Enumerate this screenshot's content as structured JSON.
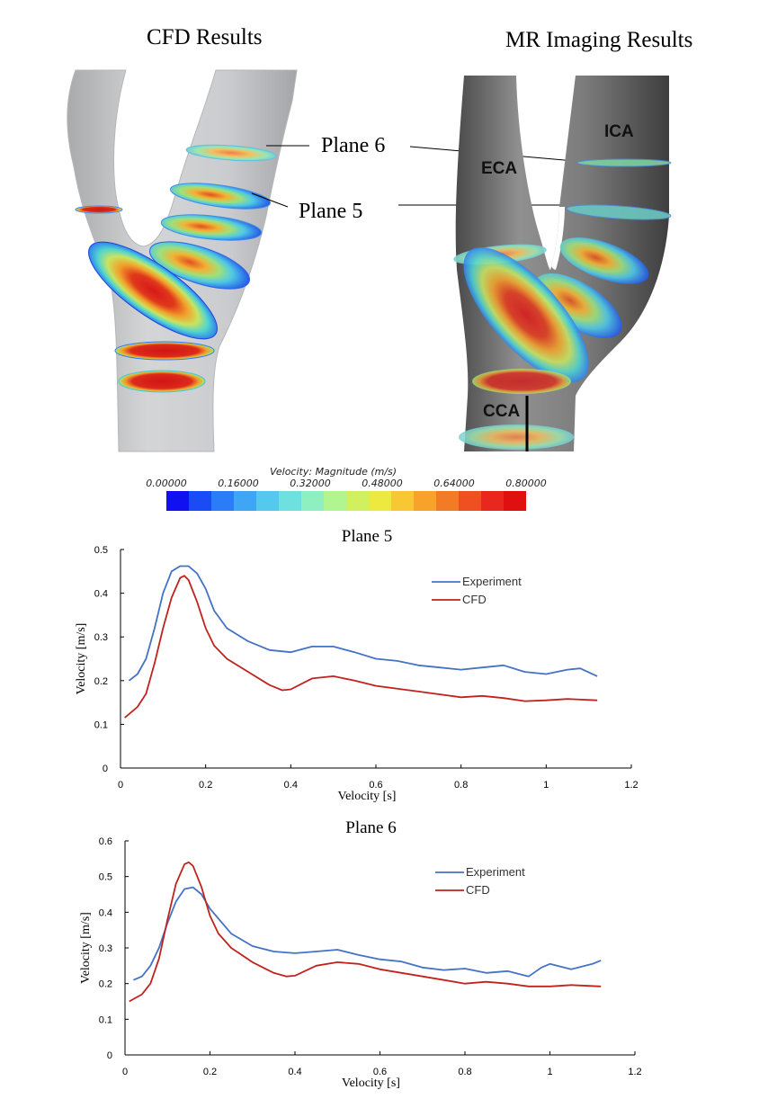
{
  "figure": {
    "cfd_heading": "CFD Results",
    "mr_heading": "MR Imaging Results",
    "plane6_label": "Plane 6",
    "plane5_label": "Plane 5",
    "mr_labels": {
      "ica": "ICA",
      "eca": "ECA",
      "cca": "CCA"
    }
  },
  "colorbar": {
    "title": "Velocity: Magnitude (m/s)",
    "ticks": [
      "0.00000",
      "0.16000",
      "0.32000",
      "0.48000",
      "0.64000",
      "0.80000"
    ],
    "colors": [
      "#1010f0",
      "#1a4cf5",
      "#2a7df7",
      "#3fa6f5",
      "#55c8ee",
      "#6fe0e0",
      "#8ef0c0",
      "#b0f590",
      "#d0f060",
      "#ecea40",
      "#f7c833",
      "#f8a22b",
      "#f47b25",
      "#ee5021",
      "#e8281e",
      "#e01010"
    ]
  },
  "chart_data": [
    {
      "type": "line",
      "title": "Plane 5",
      "xlabel": "Velocity [s]",
      "ylabel": "Velocity [m/s]",
      "xlim": [
        0,
        1.2
      ],
      "ylim": [
        0,
        0.5
      ],
      "xticks": [
        "0",
        "0.2",
        "0.4",
        "0.6",
        "0.8",
        "1",
        "1.2"
      ],
      "yticks": [
        "0",
        "0.1",
        "0.2",
        "0.3",
        "0.4",
        "0.5"
      ],
      "legend": "right",
      "series": [
        {
          "name": "Experiment",
          "color": "#4472c4",
          "x": [
            0.02,
            0.04,
            0.06,
            0.08,
            0.1,
            0.12,
            0.14,
            0.16,
            0.18,
            0.2,
            0.22,
            0.25,
            0.3,
            0.35,
            0.4,
            0.45,
            0.5,
            0.55,
            0.6,
            0.65,
            0.7,
            0.75,
            0.8,
            0.85,
            0.9,
            0.95,
            1.0,
            1.05,
            1.08,
            1.12
          ],
          "y": [
            0.2,
            0.215,
            0.25,
            0.32,
            0.4,
            0.45,
            0.462,
            0.462,
            0.445,
            0.41,
            0.36,
            0.32,
            0.29,
            0.27,
            0.265,
            0.278,
            0.278,
            0.265,
            0.25,
            0.245,
            0.235,
            0.23,
            0.225,
            0.23,
            0.235,
            0.22,
            0.215,
            0.225,
            0.228,
            0.21
          ]
        },
        {
          "name": "CFD",
          "color": "#c0231e",
          "x": [
            0.01,
            0.04,
            0.06,
            0.08,
            0.1,
            0.12,
            0.14,
            0.15,
            0.16,
            0.18,
            0.2,
            0.22,
            0.25,
            0.3,
            0.35,
            0.38,
            0.4,
            0.45,
            0.5,
            0.55,
            0.6,
            0.7,
            0.8,
            0.85,
            0.9,
            0.95,
            1.0,
            1.05,
            1.12
          ],
          "y": [
            0.115,
            0.14,
            0.17,
            0.24,
            0.32,
            0.39,
            0.435,
            0.44,
            0.43,
            0.38,
            0.32,
            0.28,
            0.25,
            0.22,
            0.19,
            0.178,
            0.18,
            0.205,
            0.21,
            0.2,
            0.188,
            0.175,
            0.162,
            0.165,
            0.16,
            0.153,
            0.155,
            0.158,
            0.155
          ]
        }
      ]
    },
    {
      "type": "line",
      "title": "Plane 6",
      "xlabel": "Velocity [s]",
      "ylabel": "Velocity [m/s]",
      "xlim": [
        0,
        1.2
      ],
      "ylim": [
        0,
        0.6
      ],
      "xticks": [
        "0",
        "0.2",
        "0.4",
        "0.6",
        "0.8",
        "1",
        "1.2"
      ],
      "yticks": [
        "0",
        "0.1",
        "0.2",
        "0.3",
        "0.4",
        "0.5",
        "0.6"
      ],
      "legend": "right",
      "series": [
        {
          "name": "Experiment",
          "color": "#4472c4",
          "x": [
            0.02,
            0.04,
            0.06,
            0.08,
            0.1,
            0.12,
            0.14,
            0.16,
            0.18,
            0.2,
            0.25,
            0.3,
            0.35,
            0.4,
            0.45,
            0.5,
            0.55,
            0.6,
            0.65,
            0.7,
            0.75,
            0.8,
            0.85,
            0.9,
            0.95,
            0.98,
            1.0,
            1.05,
            1.1,
            1.12
          ],
          "y": [
            0.21,
            0.22,
            0.25,
            0.3,
            0.37,
            0.43,
            0.465,
            0.47,
            0.45,
            0.41,
            0.34,
            0.305,
            0.29,
            0.285,
            0.29,
            0.295,
            0.28,
            0.268,
            0.262,
            0.245,
            0.238,
            0.242,
            0.23,
            0.235,
            0.22,
            0.245,
            0.255,
            0.24,
            0.255,
            0.265
          ]
        },
        {
          "name": "CFD",
          "color": "#c0231e",
          "x": [
            0.01,
            0.04,
            0.06,
            0.08,
            0.1,
            0.12,
            0.14,
            0.15,
            0.16,
            0.18,
            0.2,
            0.22,
            0.25,
            0.3,
            0.35,
            0.38,
            0.4,
            0.45,
            0.5,
            0.55,
            0.6,
            0.7,
            0.8,
            0.85,
            0.9,
            0.95,
            1.0,
            1.05,
            1.12
          ],
          "y": [
            0.15,
            0.17,
            0.2,
            0.27,
            0.38,
            0.48,
            0.535,
            0.54,
            0.53,
            0.47,
            0.39,
            0.34,
            0.3,
            0.26,
            0.23,
            0.22,
            0.222,
            0.25,
            0.26,
            0.255,
            0.24,
            0.22,
            0.2,
            0.205,
            0.2,
            0.192,
            0.192,
            0.196,
            0.192
          ]
        }
      ]
    }
  ]
}
